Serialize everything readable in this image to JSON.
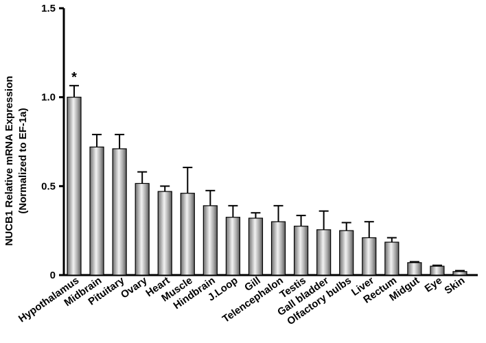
{
  "chart_data": {
    "type": "bar",
    "ylabel_line1": "NUCB1 Relative mRNA Expression",
    "ylabel_line2": "(Normalized to EF-1a)",
    "ylim": [
      0,
      1.5
    ],
    "yticks": [
      "0",
      "0.5",
      "1.0",
      "1.5"
    ],
    "ytick_values": [
      0,
      0.5,
      1.0,
      1.5
    ],
    "grid": false,
    "categories": [
      "Hypothalamus",
      "Midbrain",
      "Pituitary",
      "Ovary",
      "Heart",
      "Muscle",
      "Hindbrain",
      "J.Loop",
      "Gill",
      "Telencephalon",
      "Testis",
      "Gall bladder",
      "Olfactory bulbs",
      "Liver",
      "Rectum",
      "Midgut",
      "Eye",
      "Skin"
    ],
    "values": [
      1.0,
      0.72,
      0.71,
      0.515,
      0.47,
      0.46,
      0.39,
      0.325,
      0.32,
      0.3,
      0.275,
      0.255,
      0.25,
      0.21,
      0.185,
      0.07,
      0.05,
      0.02
    ],
    "errors": [
      0.065,
      0.07,
      0.08,
      0.065,
      0.03,
      0.145,
      0.085,
      0.065,
      0.03,
      0.09,
      0.06,
      0.105,
      0.045,
      0.09,
      0.025,
      0.005,
      0.005,
      0.005
    ],
    "annotations": [
      {
        "category": "Hypothalamus",
        "text": "*"
      }
    ],
    "bar_color": "#9a9a9a"
  }
}
